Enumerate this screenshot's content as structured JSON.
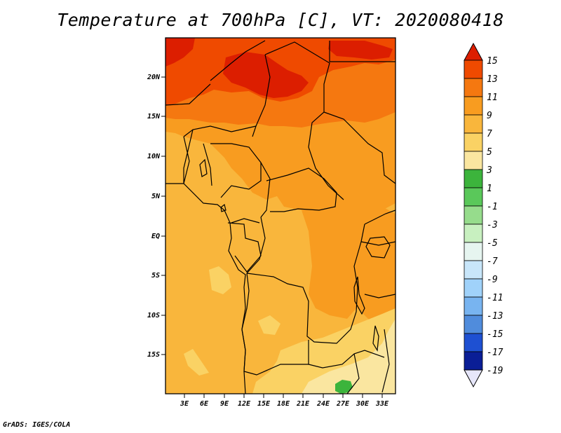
{
  "title": "Temperature at 700hPa [C], VT: 2020080418",
  "credit": "GrADS: IGES/COLA",
  "map": {
    "lat_labels": [
      "20N",
      "15N",
      "10N",
      "5N",
      "EQ",
      "5S",
      "10S",
      "15S"
    ],
    "lon_labels": [
      "3E",
      "6E",
      "9E",
      "12E",
      "15E",
      "18E",
      "21E",
      "24E",
      "27E",
      "30E",
      "33E"
    ]
  },
  "colorbar": {
    "labels": [
      "15",
      "13",
      "11",
      "9",
      "7",
      "5",
      "3",
      "1",
      "-1",
      "-3",
      "-5",
      "-7",
      "-9",
      "-11",
      "-13",
      "-15",
      "-17",
      "-19"
    ],
    "colors": [
      "#f5f0c0",
      "#3cb43c",
      "#5ac85a",
      "#96dc8c",
      "#c8f0c0",
      "#e6f5f0",
      "#c8e6fa",
      "#a0d2fa",
      "#78b4f0",
      "#508cdc",
      "#3c6edc",
      "#1e50d2",
      "#1432b4",
      "#0a1e96",
      "#050a6e"
    ],
    "top_colors": [
      "#dc1e00",
      "#ef4a00",
      "#f57810",
      "#f89c20",
      "#f9b63c",
      "#fad264",
      "#fae6a0"
    ],
    "top_arrow_color": "#dc1e00",
    "bottom_arrow_color": "#e6e6fa"
  },
  "colors": {
    "t9_11": "#f89c20",
    "t7_9": "#f9b63c",
    "t5_7": "#fad264",
    "t3_5": "#fae6a0",
    "t11_13": "#f57810",
    "t13_15": "#ef4a00",
    "t15": "#dc1e00",
    "t1_3": "#3cb43c"
  }
}
